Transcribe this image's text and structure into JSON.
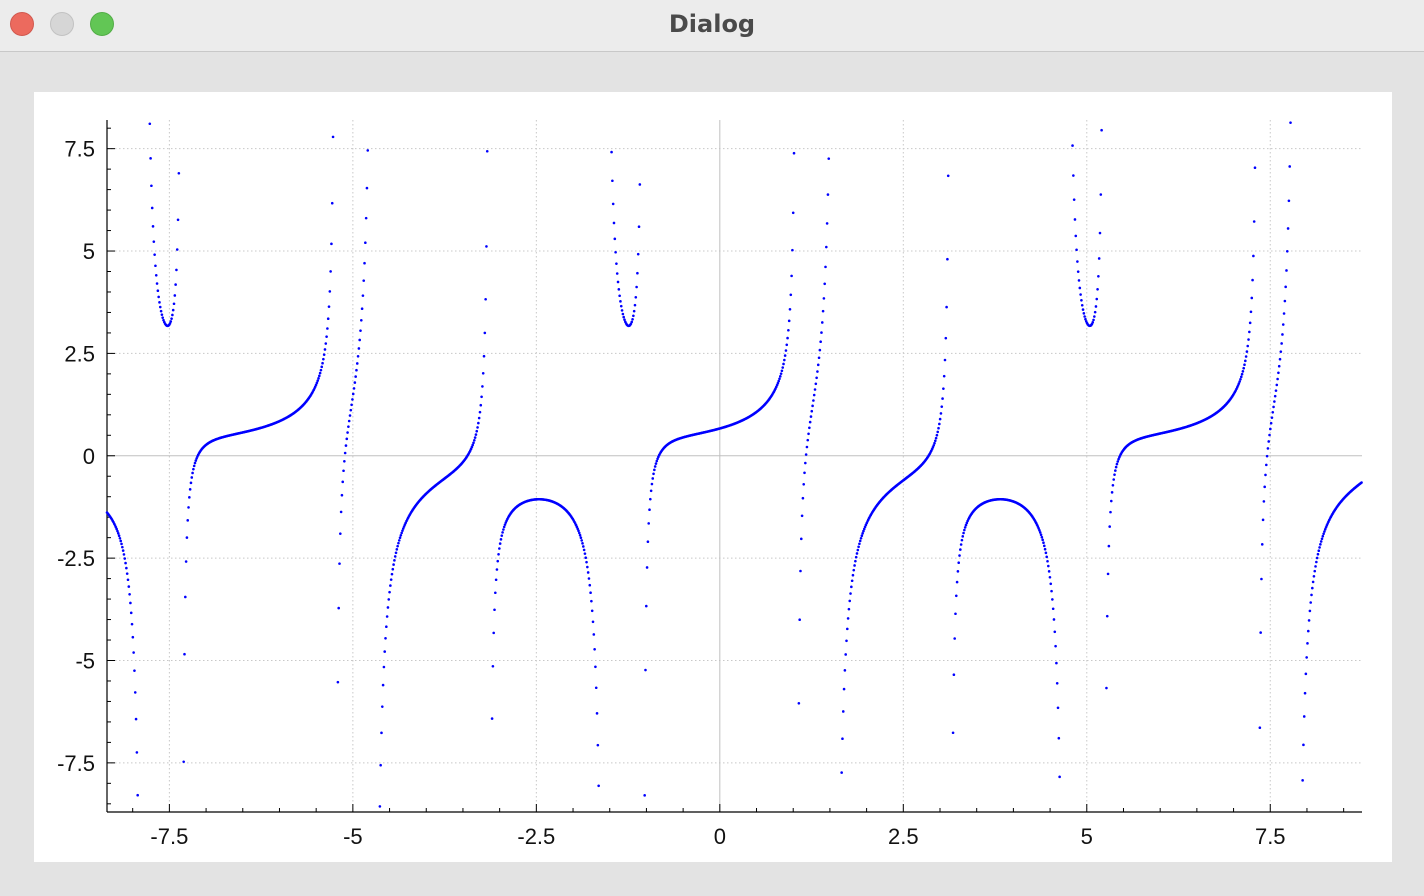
{
  "window": {
    "title": "Dialog"
  },
  "colors": {
    "series": "#0000ff",
    "grid": "#c8c8c8",
    "axis": "#000000",
    "zero_line": "#c0c0c0"
  },
  "chart_data": {
    "type": "scatter",
    "title": "",
    "xlabel": "",
    "ylabel": "",
    "xlim": [
      -8.35,
      8.75
    ],
    "ylim": [
      -8.7,
      8.2
    ],
    "grid": true,
    "legend": "none",
    "x_ticks": [
      "-7.5",
      "-5",
      "-2.5",
      "0",
      "2.5",
      "5",
      "7.5"
    ],
    "x_tick_values": [
      -7.5,
      -5,
      -2.5,
      0,
      2.5,
      5,
      7.5
    ],
    "y_ticks": [
      "7.5",
      "5",
      "2.5",
      "0",
      "-2.5",
      "-5",
      "-7.5"
    ],
    "y_tick_values": [
      7.5,
      5,
      2.5,
      0,
      -2.5,
      -5,
      -7.5
    ],
    "series": [
      {
        "function": "y = 1/(1.5·cos(x)) + tan(1.5·x)/3",
        "x_start": -8.35,
        "x_end": 8.75,
        "x_step": 0.011,
        "marker": "dot"
      }
    ]
  }
}
